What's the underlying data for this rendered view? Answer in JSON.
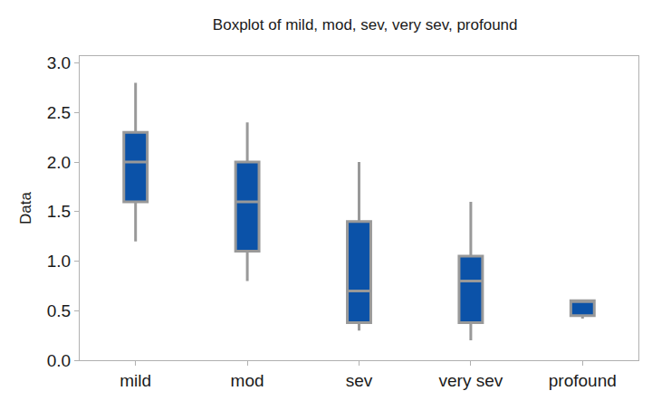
{
  "chart_data": {
    "type": "box",
    "title": "Boxplot of mild, mod, sev, very sev, profound",
    "y_label": "Data",
    "categories": [
      "mild",
      "mod",
      "sev",
      "very sev",
      "profound"
    ],
    "min": [
      1.2,
      0.8,
      0.3,
      0.2,
      0.42
    ],
    "q1": [
      1.6,
      1.1,
      0.38,
      0.38,
      0.45
    ],
    "median": [
      2.0,
      1.6,
      0.7,
      0.8,
      0.6
    ],
    "q3": [
      2.3,
      2.0,
      1.4,
      1.05,
      0.6
    ],
    "max": [
      2.8,
      2.4,
      2.0,
      1.6,
      0.6
    ],
    "color": "#0b52a8",
    "ylim": [
      0,
      3.07
    ],
    "yticks": [
      {
        "value": 0,
        "label": "0.0"
      },
      0.5,
      {
        "value": 1,
        "label": "1.0"
      },
      1.5,
      {
        "value": 2,
        "label": "2.0"
      },
      2.5,
      {
        "value": 3,
        "label": "3.0"
      }
    ],
    "grid": false
  }
}
